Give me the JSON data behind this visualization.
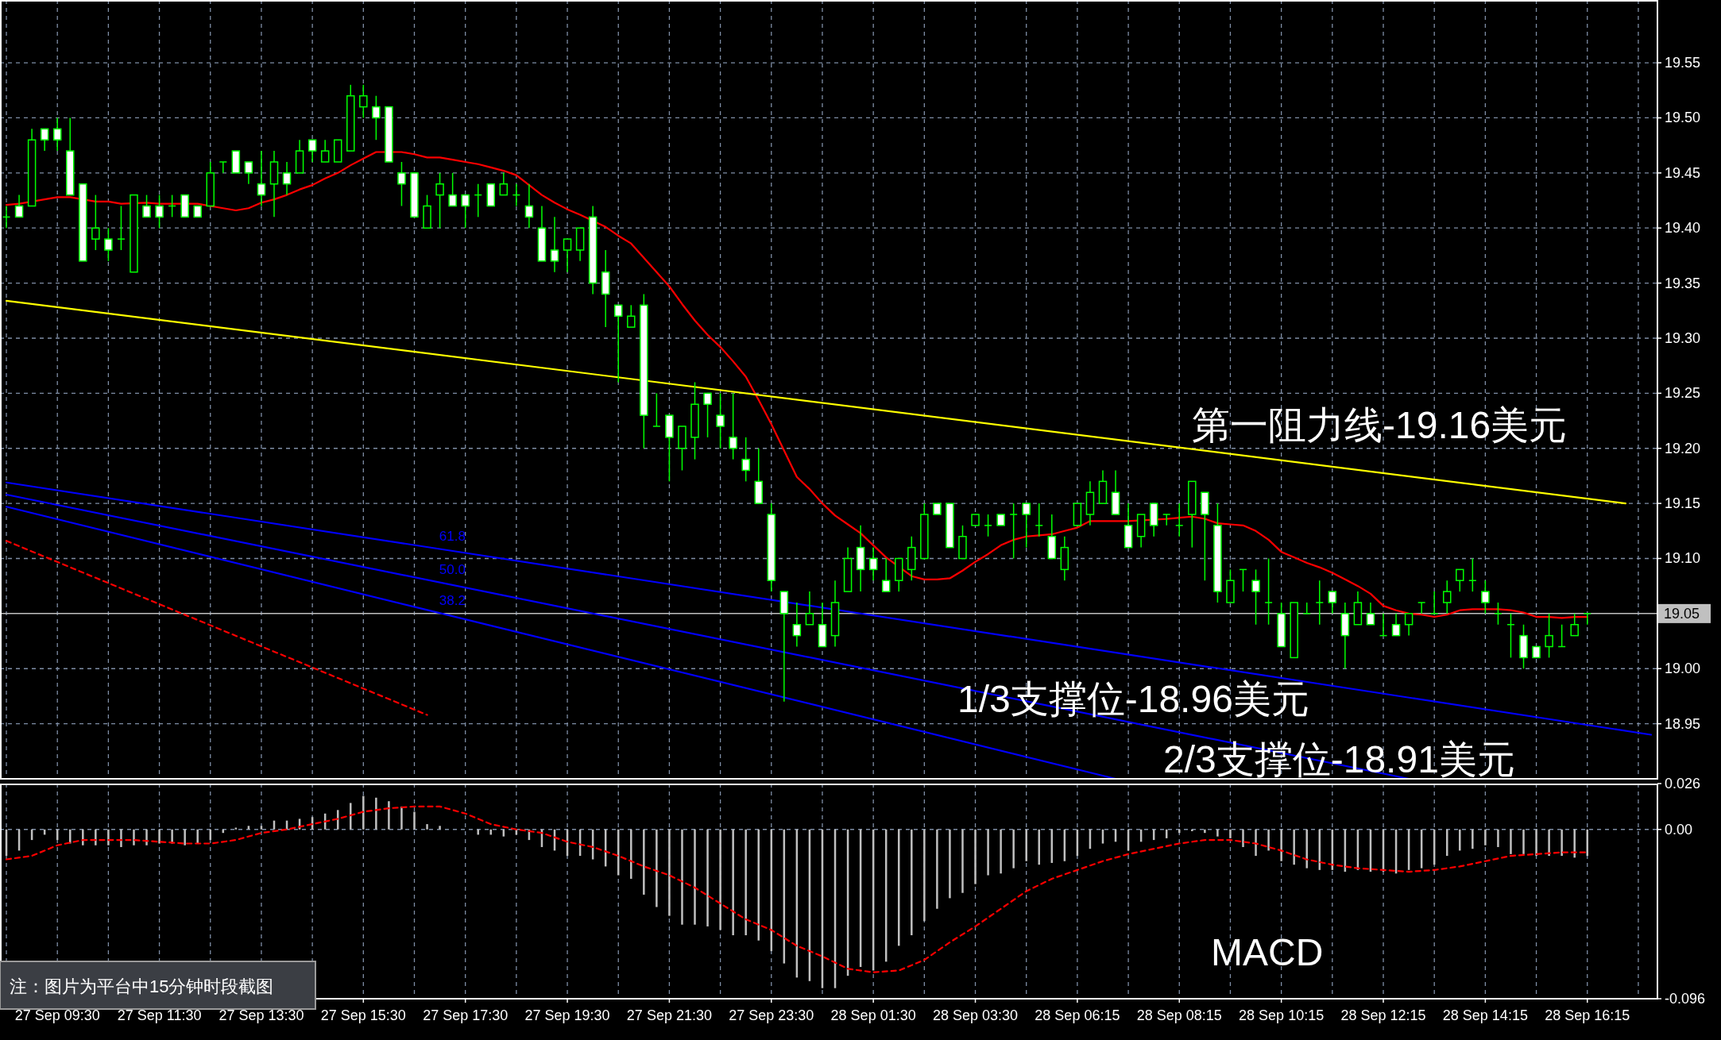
{
  "chart_data": [
    {
      "type": "candlestick",
      "tick_labels": "y",
      "grid": true,
      "ylim": [
        18.9,
        19.607
      ],
      "yticks": [
        19.55,
        {
          "value": 19.5,
          "label": "19.50"
        },
        19.45,
        {
          "value": 19.4,
          "label": "19.40"
        },
        19.35,
        {
          "value": 19.3,
          "label": "19.30"
        },
        19.25,
        {
          "value": 19.2,
          "label": "19.20"
        },
        19.15,
        {
          "value": 19.1,
          "label": "19.10"
        },
        {
          "value": 19.0,
          "label": "19.00"
        },
        18.95
      ],
      "categories": [
        null,
        null,
        null,
        null,
        null,
        null,
        null,
        null,
        null,
        null,
        null,
        null,
        null,
        null,
        null,
        null,
        null,
        null,
        null,
        null,
        null,
        null,
        null,
        null,
        null,
        null,
        null,
        null,
        null,
        null,
        null,
        null,
        null,
        null,
        null,
        null,
        null,
        null,
        null,
        null,
        null,
        null,
        null,
        null,
        null,
        null,
        null,
        null,
        null,
        null,
        null,
        null,
        null,
        null,
        null,
        null,
        null,
        null,
        null,
        null,
        null,
        null,
        null,
        null,
        null,
        null,
        null,
        null,
        null,
        null,
        null,
        null,
        null,
        null,
        null,
        null,
        null,
        null,
        null,
        null,
        null,
        null,
        null,
        null,
        null,
        null,
        null,
        null,
        null,
        null,
        null,
        null,
        null,
        null,
        null,
        null,
        null,
        null,
        null,
        null,
        null,
        null,
        null,
        null,
        null,
        null,
        null,
        null,
        null,
        null,
        null,
        null,
        null,
        null,
        null,
        null,
        null,
        null,
        null,
        null,
        null,
        null,
        null,
        null,
        null,
        null,
        null,
        null,
        null,
        null
      ],
      "ohlc": [
        [
          19.41,
          19.42,
          19.4,
          19.41
        ],
        [
          19.42,
          19.43,
          19.41,
          19.41
        ],
        [
          19.42,
          19.49,
          19.42,
          19.48
        ],
        [
          19.49,
          19.49,
          19.47,
          19.48
        ],
        [
          19.49,
          19.5,
          19.47,
          19.48
        ],
        [
          19.47,
          19.5,
          19.43,
          19.43
        ],
        [
          19.44,
          19.44,
          19.37,
          19.37
        ],
        [
          19.39,
          19.43,
          19.38,
          19.4
        ],
        [
          19.39,
          19.4,
          19.37,
          19.38
        ],
        [
          19.39,
          19.42,
          19.38,
          19.39
        ],
        [
          19.36,
          19.43,
          19.36,
          19.43
        ],
        [
          19.42,
          19.43,
          19.41,
          19.41
        ],
        [
          19.42,
          19.43,
          19.4,
          19.41
        ],
        [
          19.42,
          19.43,
          19.41,
          19.42
        ],
        [
          19.43,
          19.43,
          19.41,
          19.41
        ],
        [
          19.42,
          19.42,
          19.41,
          19.41
        ],
        [
          19.42,
          19.46,
          19.42,
          19.45
        ],
        [
          19.46,
          19.46,
          19.45,
          19.46
        ],
        [
          19.47,
          19.47,
          19.45,
          19.45
        ],
        [
          19.46,
          19.46,
          19.44,
          19.45
        ],
        [
          19.44,
          19.47,
          19.42,
          19.43
        ],
        [
          19.44,
          19.47,
          19.41,
          19.46
        ],
        [
          19.45,
          19.46,
          19.43,
          19.44
        ],
        [
          19.45,
          19.48,
          19.45,
          19.47
        ],
        [
          19.48,
          19.48,
          19.46,
          19.47
        ],
        [
          19.46,
          19.48,
          19.46,
          19.47
        ],
        [
          19.46,
          19.48,
          19.46,
          19.48
        ],
        [
          19.47,
          19.53,
          19.47,
          19.52
        ],
        [
          19.51,
          19.53,
          19.5,
          19.52
        ],
        [
          19.51,
          19.52,
          19.48,
          19.5
        ],
        [
          19.51,
          19.51,
          19.46,
          19.46
        ],
        [
          19.45,
          19.46,
          19.42,
          19.44
        ],
        [
          19.45,
          19.45,
          19.41,
          19.41
        ],
        [
          19.4,
          19.43,
          19.4,
          19.42
        ],
        [
          19.43,
          19.45,
          19.4,
          19.44
        ],
        [
          19.43,
          19.45,
          19.42,
          19.42
        ],
        [
          19.43,
          19.43,
          19.4,
          19.42
        ],
        [
          19.43,
          19.44,
          19.41,
          19.43
        ],
        [
          19.44,
          19.44,
          19.42,
          19.42
        ],
        [
          19.43,
          19.45,
          19.43,
          19.44
        ],
        [
          19.43,
          19.44,
          19.42,
          19.43
        ],
        [
          19.42,
          19.44,
          19.4,
          19.41
        ],
        [
          19.4,
          19.42,
          19.37,
          19.37
        ],
        [
          19.38,
          19.41,
          19.36,
          19.37
        ],
        [
          19.38,
          19.39,
          19.36,
          19.39
        ],
        [
          19.38,
          19.4,
          19.37,
          19.4
        ],
        [
          19.41,
          19.42,
          19.34,
          19.35
        ],
        [
          19.36,
          19.38,
          19.31,
          19.34
        ],
        [
          19.33,
          19.33,
          19.26,
          19.32
        ],
        [
          19.31,
          19.33,
          19.31,
          19.32
        ],
        [
          19.33,
          19.34,
          19.2,
          19.23
        ],
        [
          19.22,
          19.25,
          19.22,
          19.22
        ],
        [
          19.23,
          19.23,
          19.17,
          19.21
        ],
        [
          19.2,
          19.22,
          19.18,
          19.22
        ],
        [
          19.21,
          19.26,
          19.19,
          19.24
        ],
        [
          19.25,
          19.25,
          19.21,
          19.24
        ],
        [
          19.23,
          19.25,
          19.2,
          19.22
        ],
        [
          19.21,
          19.25,
          19.19,
          19.2
        ],
        [
          19.19,
          19.21,
          19.17,
          19.18
        ],
        [
          19.17,
          19.2,
          19.15,
          19.15
        ],
        [
          19.14,
          19.15,
          19.07,
          19.08
        ],
        [
          19.07,
          19.07,
          18.97,
          19.05
        ],
        [
          19.04,
          19.06,
          19.02,
          19.03
        ],
        [
          19.04,
          19.07,
          19.04,
          19.05
        ],
        [
          19.04,
          19.06,
          19.02,
          19.02
        ],
        [
          19.03,
          19.08,
          19.02,
          19.06
        ],
        [
          19.07,
          19.11,
          19.07,
          19.1
        ],
        [
          19.11,
          19.13,
          19.07,
          19.09
        ],
        [
          19.1,
          19.11,
          19.08,
          19.09
        ],
        [
          19.08,
          19.1,
          19.07,
          19.07
        ],
        [
          19.08,
          19.1,
          19.07,
          19.1
        ],
        [
          19.09,
          19.12,
          19.08,
          19.11
        ],
        [
          19.1,
          19.15,
          19.1,
          19.14
        ],
        [
          19.15,
          19.15,
          19.14,
          19.14
        ],
        [
          19.15,
          19.15,
          19.11,
          19.11
        ],
        [
          19.1,
          19.13,
          19.1,
          19.12
        ],
        [
          19.13,
          19.14,
          19.13,
          19.14
        ],
        [
          19.13,
          19.14,
          19.12,
          19.13
        ],
        [
          19.14,
          19.14,
          19.13,
          19.13
        ],
        [
          19.14,
          19.15,
          19.1,
          19.14
        ],
        [
          19.15,
          19.15,
          19.11,
          19.14
        ],
        [
          19.13,
          19.15,
          19.12,
          19.13
        ],
        [
          19.12,
          19.14,
          19.1,
          19.1
        ],
        [
          19.09,
          19.12,
          19.08,
          19.11
        ],
        [
          19.13,
          19.15,
          19.13,
          19.15
        ],
        [
          19.14,
          19.17,
          19.13,
          19.16
        ],
        [
          19.15,
          19.18,
          19.15,
          19.17
        ],
        [
          19.16,
          19.18,
          19.14,
          19.14
        ],
        [
          19.13,
          19.15,
          19.11,
          19.11
        ],
        [
          19.12,
          19.14,
          19.11,
          19.14
        ],
        [
          19.15,
          19.15,
          19.12,
          19.13
        ],
        [
          19.14,
          19.14,
          19.13,
          19.14
        ],
        [
          19.13,
          19.15,
          19.12,
          19.13
        ],
        [
          19.14,
          19.17,
          19.11,
          19.17
        ],
        [
          19.16,
          19.16,
          19.08,
          19.14
        ],
        [
          19.13,
          19.15,
          19.06,
          19.07
        ],
        [
          19.06,
          19.09,
          19.06,
          19.08
        ],
        [
          19.09,
          19.09,
          19.07,
          19.09
        ],
        [
          19.08,
          19.09,
          19.04,
          19.07
        ],
        [
          19.06,
          19.1,
          19.04,
          19.06
        ],
        [
          19.05,
          19.06,
          19.02,
          19.02
        ],
        [
          19.01,
          19.06,
          19.01,
          19.06
        ],
        [
          19.05,
          19.06,
          19.05,
          19.05
        ],
        [
          19.06,
          19.08,
          19.04,
          19.06
        ],
        [
          19.07,
          19.07,
          19.05,
          19.06
        ],
        [
          19.05,
          19.06,
          19.0,
          19.03
        ],
        [
          19.04,
          19.07,
          19.04,
          19.06
        ],
        [
          19.05,
          19.06,
          19.04,
          19.04
        ],
        [
          19.03,
          19.05,
          19.03,
          19.03
        ],
        [
          19.04,
          19.05,
          19.03,
          19.03
        ],
        [
          19.04,
          19.05,
          19.03,
          19.05
        ],
        [
          19.06,
          19.06,
          19.05,
          19.06
        ],
        [
          19.05,
          19.07,
          19.05,
          19.05
        ],
        [
          19.06,
          19.08,
          19.05,
          19.07
        ],
        [
          19.08,
          19.09,
          19.07,
          19.09
        ],
        [
          19.08,
          19.1,
          19.07,
          19.08
        ],
        [
          19.07,
          19.08,
          19.05,
          19.06
        ],
        [
          19.05,
          19.06,
          19.04,
          19.05
        ],
        [
          19.04,
          19.05,
          19.01,
          19.04
        ],
        [
          19.03,
          19.04,
          19.0,
          19.01
        ],
        [
          19.02,
          19.02,
          19.01,
          19.01
        ],
        [
          19.02,
          19.05,
          19.01,
          19.03
        ],
        [
          19.02,
          19.04,
          19.02,
          19.02
        ],
        [
          19.03,
          19.05,
          19.03,
          19.04
        ],
        [
          19.05,
          19.05,
          19.04,
          19.05
        ],
        null,
        null,
        null,
        null,
        null
      ],
      "series": [
        {
          "type": "line",
          "color": "#ff0000",
          "line_style": "solid",
          "values": [
            19.421,
            19.422,
            null,
            19.426,
            19.428,
            19.428,
            null,
            19.424,
            19.424,
            19.422,
            null,
            19.423,
            19.422,
            19.422,
            null,
            19.422,
            null,
            19.418,
            19.416,
            19.418,
            19.423,
            19.426,
            19.43,
            19.435,
            19.439,
            19.445,
            19.45,
            19.457,
            19.463,
            19.469,
            null,
            19.469,
            19.467,
            19.464,
            19.464,
            19.462,
            19.46,
            19.458,
            19.455,
            19.452,
            19.448,
            19.439,
            19.43,
            19.423,
            19.417,
            19.412,
            null,
            19.401,
            19.393,
            19.386,
            19.373,
            19.36,
            19.347,
            19.331,
            19.316,
            19.303,
            19.292,
            19.279,
            19.265,
            19.244,
            19.222,
            19.198,
            19.174,
            19.163,
            19.15,
            19.139,
            19.131,
            19.123,
            19.112,
            19.101,
            null,
            19.084,
            19.081,
            19.081,
            19.082,
            19.089,
            19.097,
            19.104,
            19.112,
            19.117,
            19.12,
            19.121,
            19.122,
            19.125,
            19.128,
            19.134,
            19.134,
            19.134,
            19.134,
            null,
            null,
            19.136,
            19.137,
            19.138,
            19.136,
            19.132,
            19.131,
            19.13,
            19.125,
            19.117,
            19.106,
            19.101,
            19.096,
            19.092,
            19.087,
            19.081,
            19.075,
            19.068,
            19.057,
            19.053,
            19.05,
            19.049,
            19.047,
            19.049,
            19.053,
            19.054,
            19.054,
            19.054,
            19.053,
            19.051,
            19.047,
            19.047,
            19.046,
            19.047,
            19.047,
            null,
            null,
            null,
            null,
            null
          ]
        },
        {
          "type": "line",
          "color": "#ffff00",
          "line_style": "solid",
          "values": [
            19.334,
            null,
            null,
            null,
            null,
            null,
            null,
            null,
            null,
            null,
            null,
            null,
            null,
            null,
            null,
            null,
            null,
            null,
            null,
            null,
            null,
            null,
            null,
            null,
            null,
            null,
            null,
            null,
            null,
            null,
            null,
            null,
            null,
            null,
            null,
            null,
            null,
            null,
            null,
            null,
            null,
            null,
            null,
            null,
            null,
            null,
            null,
            null,
            null,
            null,
            null,
            null,
            null,
            null,
            null,
            null,
            null,
            null,
            null,
            null,
            null,
            null,
            null,
            null,
            null,
            null,
            null,
            null,
            null,
            null,
            null,
            null,
            null,
            null,
            null,
            null,
            null,
            null,
            null,
            null,
            null,
            null,
            null,
            null,
            null,
            null,
            null,
            null,
            null,
            null,
            null,
            null,
            null,
            null,
            null,
            null,
            null,
            null,
            null,
            null,
            null,
            null,
            null,
            null,
            null,
            null,
            null,
            null,
            null,
            null,
            null,
            null,
            null,
            null,
            null,
            null,
            null,
            null,
            null,
            null,
            null,
            null,
            null,
            null,
            null,
            null,
            null,
            19.15,
            null,
            null
          ]
        },
        {
          "type": "line",
          "name": "61.8",
          "color": "#0000ff",
          "line_style": "solid",
          "values": [
            19.169,
            null,
            null,
            null,
            null,
            null,
            null,
            null,
            null,
            null,
            null,
            null,
            null,
            null,
            null,
            null,
            null,
            null,
            null,
            null,
            null,
            null,
            null,
            null,
            null,
            null,
            null,
            null,
            null,
            null,
            null,
            null,
            null,
            null,
            null,
            null,
            null,
            null,
            null,
            null,
            null,
            null,
            null,
            null,
            null,
            null,
            null,
            null,
            null,
            null,
            null,
            null,
            null,
            null,
            null,
            null,
            null,
            null,
            null,
            null,
            null,
            null,
            null,
            null,
            null,
            null,
            null,
            null,
            null,
            null,
            null,
            null,
            null,
            null,
            null,
            null,
            null,
            null,
            null,
            null,
            null,
            null,
            null,
            null,
            null,
            null,
            null,
            null,
            null,
            null,
            null,
            null,
            null,
            null,
            null,
            null,
            null,
            null,
            null,
            null,
            null,
            null,
            null,
            null,
            null,
            null,
            null,
            null,
            null,
            null,
            null,
            null,
            null,
            null,
            null,
            null,
            null,
            null,
            null,
            null,
            null,
            null,
            null,
            null,
            null,
            null,
            null,
            null,
            null,
            18.94
          ]
        },
        {
          "type": "line",
          "name": "50.0",
          "color": "#0000ff",
          "line_style": "solid",
          "values": [
            19.158,
            null,
            null,
            null,
            null,
            null,
            null,
            null,
            null,
            null,
            null,
            null,
            null,
            null,
            null,
            null,
            null,
            null,
            null,
            null,
            null,
            null,
            null,
            null,
            null,
            null,
            null,
            null,
            null,
            null,
            null,
            null,
            null,
            null,
            null,
            null,
            null,
            null,
            null,
            null,
            null,
            null,
            null,
            null,
            null,
            null,
            null,
            null,
            null,
            null,
            null,
            null,
            null,
            null,
            null,
            null,
            null,
            null,
            null,
            null,
            null,
            null,
            null,
            null,
            null,
            null,
            null,
            null,
            null,
            null,
            null,
            null,
            null,
            null,
            null,
            null,
            null,
            null,
            null,
            null,
            null,
            null,
            null,
            null,
            null,
            null,
            null,
            null,
            null,
            null,
            null,
            null,
            null,
            null,
            null,
            null,
            null,
            null,
            null,
            null,
            null,
            null,
            null,
            null,
            null,
            null,
            null,
            null,
            null,
            null,
            18.9,
            null,
            null,
            null,
            null,
            null,
            null,
            null,
            null,
            null,
            null,
            null,
            null,
            null,
            null,
            null,
            null,
            null,
            null,
            null
          ]
        },
        {
          "type": "line",
          "name": "38.2",
          "color": "#0000ff",
          "line_style": "solid",
          "values": [
            19.147,
            null,
            null,
            null,
            null,
            null,
            null,
            null,
            null,
            null,
            null,
            null,
            null,
            null,
            null,
            null,
            null,
            null,
            null,
            null,
            null,
            null,
            null,
            null,
            null,
            null,
            null,
            null,
            null,
            null,
            null,
            null,
            null,
            null,
            null,
            null,
            null,
            null,
            null,
            null,
            null,
            null,
            null,
            null,
            null,
            null,
            null,
            null,
            null,
            null,
            null,
            null,
            null,
            null,
            null,
            null,
            null,
            null,
            null,
            null,
            null,
            null,
            null,
            null,
            null,
            null,
            null,
            null,
            null,
            null,
            null,
            null,
            null,
            null,
            null,
            null,
            null,
            null,
            null,
            null,
            null,
            null,
            null,
            null,
            null,
            null,
            null,
            18.9,
            null,
            null,
            null,
            null,
            null,
            null,
            null,
            null,
            null,
            null,
            null,
            null,
            null,
            null,
            null,
            null,
            null,
            null,
            null,
            null,
            null,
            null,
            null,
            null,
            null,
            null,
            null,
            null,
            null,
            null,
            null,
            null,
            null,
            null,
            null,
            null,
            null,
            null,
            null,
            null,
            null,
            null
          ]
        },
        {
          "type": "line",
          "color": "#ff0000",
          "line_style": "dashed",
          "values": [
            19.116,
            null,
            null,
            null,
            null,
            null,
            null,
            null,
            null,
            null,
            null,
            null,
            null,
            null,
            null,
            null,
            null,
            null,
            null,
            null,
            null,
            null,
            null,
            null,
            null,
            null,
            null,
            null,
            null,
            null,
            null,
            null,
            null,
            18.958,
            null,
            null,
            null,
            null,
            null,
            null,
            null,
            null,
            null,
            null,
            null,
            null,
            null,
            null,
            null,
            null,
            null,
            null,
            null,
            null,
            null,
            null,
            null,
            null,
            null,
            null,
            null,
            null,
            null,
            null,
            null,
            null,
            null,
            null,
            null,
            null,
            null,
            null,
            null,
            null,
            null,
            null,
            null,
            null,
            null,
            null,
            null,
            null,
            null,
            null,
            null,
            null,
            null,
            null,
            null,
            null,
            null,
            null,
            null,
            null,
            null,
            null,
            null,
            null,
            null,
            null,
            null,
            null,
            null,
            null,
            null,
            null,
            null,
            null,
            null,
            null,
            null,
            null,
            null,
            null,
            null,
            null,
            null,
            null,
            null,
            null,
            null,
            null,
            null,
            null,
            null,
            null,
            null,
            null,
            null,
            null
          ]
        }
      ],
      "ref_lines": [
        {
          "axis": "y",
          "value": 19.05,
          "label": "19.05",
          "color": "#c0c0c0"
        }
      ],
      "annotations": [
        "第一阻力线-19.16美元",
        "1/3支撑位-18.96美元",
        "2/3支撑位-18.91美元"
      ]
    },
    {
      "type": "bar",
      "title": "MACD",
      "grid": true,
      "ylim": [
        -0.096,
        0.026
      ],
      "yticks": [
        0.026,
        {
          "value": 0,
          "label": "0.00"
        },
        -0.096
      ],
      "categories": [
        null,
        null,
        null,
        null,
        "27 Sep 09:30",
        null,
        null,
        null,
        null,
        null,
        null,
        null,
        "27 Sep 11:30",
        null,
        null,
        null,
        null,
        null,
        null,
        null,
        "27 Sep 13:30",
        null,
        null,
        null,
        null,
        null,
        null,
        null,
        "27 Sep 15:30",
        null,
        null,
        null,
        null,
        null,
        null,
        null,
        "27 Sep 17:30",
        null,
        null,
        null,
        null,
        null,
        null,
        null,
        "27 Sep 19:30",
        null,
        null,
        null,
        null,
        null,
        null,
        null,
        "27 Sep 21:30",
        null,
        null,
        null,
        null,
        null,
        null,
        null,
        "27 Sep 23:30",
        null,
        null,
        null,
        null,
        null,
        null,
        null,
        "28 Sep 01:30",
        null,
        null,
        null,
        null,
        null,
        null,
        null,
        "28 Sep 03:30",
        null,
        null,
        null,
        null,
        null,
        null,
        null,
        "28 Sep 06:15",
        null,
        null,
        null,
        null,
        null,
        null,
        null,
        "28 Sep 08:15",
        null,
        null,
        null,
        null,
        null,
        null,
        null,
        "28 Sep 10:15",
        null,
        null,
        null,
        null,
        null,
        null,
        null,
        "28 Sep 12:15",
        null,
        null,
        null,
        null,
        null,
        null,
        null,
        "28 Sep 14:15",
        null,
        null,
        null,
        null,
        null,
        null,
        null,
        "28 Sep 16:15",
        null,
        null,
        null,
        null,
        null
      ],
      "series": [
        {
          "type": "bar",
          "color": "#c0c0c0",
          "values": [
            -0.015,
            -0.012,
            -0.006,
            -0.003,
            -0.006,
            -0.008,
            -0.009,
            -0.009,
            -0.009,
            -0.01,
            -0.009,
            -0.009,
            -0.008,
            -0.008,
            -0.009,
            -0.008,
            -0.006,
            -0.002,
            0.001,
            0.002,
            0.002,
            0.005,
            0.005,
            0.006,
            0.007,
            0.009,
            0.011,
            0.015,
            0.019,
            0.018,
            0.016,
            0.013,
            0.01,
            0.003,
            0.002,
            0.0,
            0.0,
            -0.003,
            -0.003,
            -0.004,
            -0.003,
            -0.006,
            -0.01,
            -0.012,
            -0.015,
            -0.015,
            -0.017,
            -0.021,
            -0.026,
            -0.028,
            -0.037,
            -0.044,
            -0.049,
            -0.054,
            -0.054,
            -0.055,
            -0.057,
            -0.06,
            -0.06,
            -0.063,
            -0.069,
            -0.076,
            -0.084,
            -0.086,
            -0.09,
            -0.09,
            -0.083,
            -0.078,
            -0.08,
            -0.075,
            -0.066,
            -0.06,
            -0.052,
            -0.045,
            -0.039,
            -0.036,
            -0.031,
            -0.026,
            -0.025,
            -0.022,
            -0.018,
            -0.02,
            -0.019,
            -0.018,
            -0.015,
            -0.011,
            -0.008,
            -0.007,
            -0.012,
            -0.007,
            -0.006,
            -0.005,
            -0.002,
            -0.001,
            -0.002,
            -0.004,
            -0.005,
            -0.01,
            -0.015,
            -0.012,
            -0.018,
            -0.02,
            -0.022,
            -0.023,
            -0.023,
            -0.024,
            -0.023,
            -0.024,
            -0.024,
            -0.025,
            -0.023,
            -0.022,
            -0.02,
            -0.015,
            -0.012,
            -0.011,
            -0.009,
            -0.01,
            -0.014,
            -0.014,
            -0.015,
            -0.015,
            -0.015,
            -0.016,
            -0.015,
            null,
            null,
            null,
            null,
            null
          ]
        },
        {
          "type": "line",
          "color": "#ff0000",
          "line_style": "dashed",
          "values": [
            -0.017,
            null,
            -0.015,
            null,
            -0.009,
            null,
            -0.006,
            null,
            -0.006,
            null,
            -0.006,
            null,
            -0.007,
            null,
            -0.008,
            null,
            -0.008,
            null,
            -0.006,
            null,
            -0.002,
            null,
            0.0,
            null,
            0.003,
            null,
            0.006,
            null,
            0.01,
            null,
            0.012,
            null,
            0.013,
            null,
            0.013,
            null,
            0.009,
            null,
            0.003,
            null,
            0.0,
            null,
            -0.002,
            null,
            -0.007,
            null,
            -0.01,
            null,
            -0.015,
            null,
            -0.021,
            null,
            -0.026,
            null,
            -0.033,
            null,
            -0.042,
            null,
            -0.051,
            null,
            -0.057,
            null,
            -0.066,
            null,
            -0.072,
            null,
            -0.079,
            null,
            -0.081,
            null,
            -0.08,
            null,
            -0.074,
            null,
            -0.064,
            null,
            -0.055,
            null,
            -0.045,
            null,
            -0.035,
            null,
            -0.028,
            null,
            -0.023,
            null,
            -0.018,
            null,
            -0.014,
            null,
            -0.011,
            null,
            -0.008,
            null,
            -0.006,
            null,
            -0.006,
            null,
            -0.008,
            null,
            -0.012,
            null,
            -0.017,
            null,
            -0.02,
            null,
            -0.022,
            null,
            -0.023,
            null,
            -0.024,
            null,
            -0.023,
            null,
            -0.021,
            null,
            -0.018,
            null,
            -0.015,
            null,
            -0.014,
            null,
            -0.013,
            null,
            -0.013,
            null,
            null,
            null,
            null,
            null
          ]
        }
      ],
      "annotations": [
        "注：图片为平台中15分钟时段截图"
      ]
    }
  ]
}
